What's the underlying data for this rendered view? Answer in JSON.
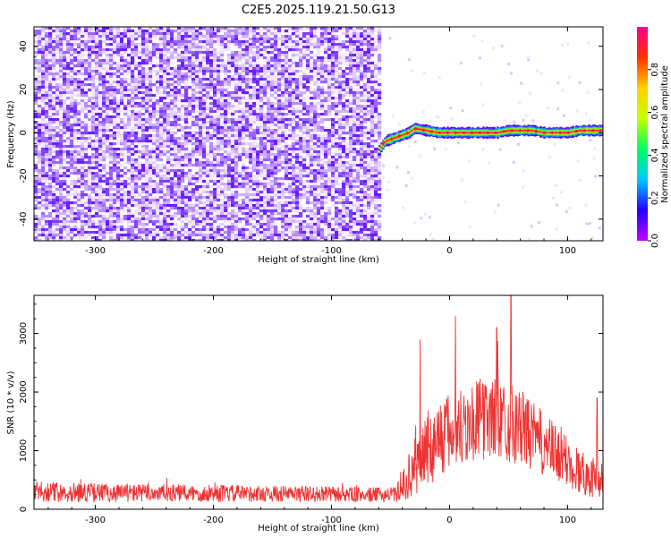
{
  "title": "C2E5.2025.119.21.50.G13",
  "chart_data": [
    {
      "type": "heatmap",
      "title": "C2E5.2025.119.21.50.G13",
      "xlabel": "Height of straight line (km)",
      "ylabel": "Frequency (Hz)",
      "xlim": [
        -352,
        130
      ],
      "ylim": [
        -50,
        49
      ],
      "xticks": [
        -300,
        -200,
        -100,
        0,
        100
      ],
      "yticks": [
        -40,
        -20,
        0,
        20,
        40
      ],
      "noise_region_x": [
        -352,
        -60
      ],
      "signal_track": {
        "x": [
          -60,
          -55,
          -50,
          -45,
          -40,
          -35,
          -30,
          -20,
          -10,
          0,
          10,
          20,
          30,
          40,
          50,
          60,
          70,
          80,
          90,
          100,
          110,
          120,
          130
        ],
        "freq": [
          -8,
          -4,
          -3,
          -2,
          -1,
          0,
          2,
          1,
          0,
          0,
          0,
          0,
          0,
          0,
          1,
          1,
          1,
          0,
          0,
          0,
          1,
          1,
          1
        ]
      },
      "colorbar": {
        "label": "Normalized spectral amplitude",
        "range": [
          0.0,
          1.0
        ],
        "ticks": [
          "0.0",
          "0.2",
          "0.4",
          "0.6",
          "0.8"
        ],
        "colormap": [
          "#c000ff",
          "#2200ff",
          "#00c8ff",
          "#00ff60",
          "#c8ff00",
          "#ffd000",
          "#ff3000",
          "#ff0090"
        ]
      }
    },
    {
      "type": "line",
      "xlabel": "Height of straight line (km)",
      "ylabel": "SNR (10 * v/v)",
      "xlim": [
        -352,
        130
      ],
      "ylim": [
        0,
        3650
      ],
      "xticks": [
        -300,
        -200,
        -100,
        0,
        100
      ],
      "yticks": [
        0,
        1000,
        2000,
        3000
      ],
      "line_color": "#ee3333",
      "envelope": {
        "x": [
          -352,
          -320,
          -280,
          -240,
          -200,
          -160,
          -120,
          -80,
          -60,
          -45,
          -38,
          -30,
          -20,
          -10,
          0,
          10,
          20,
          30,
          40,
          50,
          60,
          70,
          80,
          90,
          100,
          110,
          120,
          130
        ],
        "mean": [
          300,
          290,
          280,
          275,
          270,
          265,
          260,
          250,
          245,
          250,
          450,
          700,
          1000,
          1200,
          1300,
          1400,
          1500,
          1550,
          1550,
          1500,
          1400,
          1250,
          1100,
          950,
          800,
          650,
          550,
          500
        ],
        "spread": [
          180,
          170,
          160,
          150,
          150,
          140,
          140,
          130,
          130,
          130,
          300,
          500,
          650,
          700,
          700,
          700,
          700,
          700,
          700,
          700,
          650,
          600,
          550,
          500,
          450,
          400,
          350,
          300
        ]
      },
      "peaks": [
        {
          "x": 52,
          "y": 3650
        },
        {
          "x": 5,
          "y": 3300
        },
        {
          "x": -25,
          "y": 2900
        },
        {
          "x": 40,
          "y": 3100
        },
        {
          "x": 125,
          "y": 1900
        }
      ]
    }
  ]
}
